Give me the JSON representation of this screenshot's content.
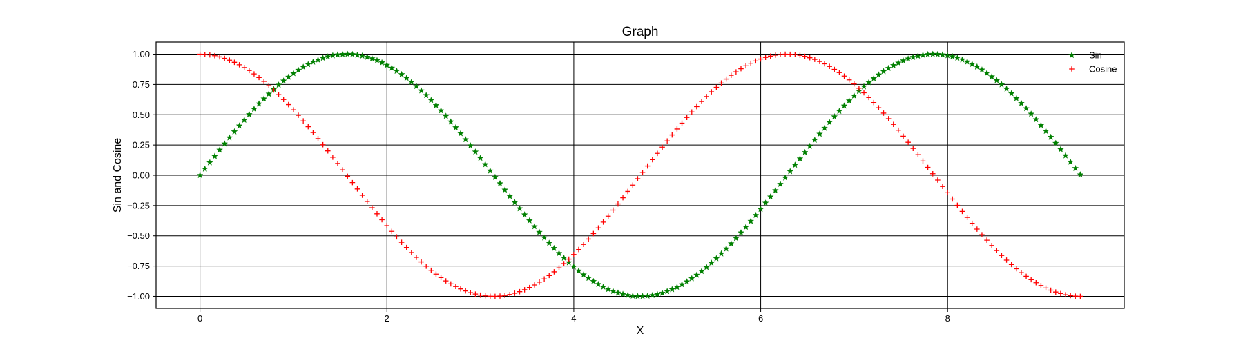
{
  "chart_data": {
    "type": "scatter",
    "title": "Graph",
    "xlabel": "X",
    "ylabel": "Sin and Cosine",
    "xlim": [
      -0.47,
      9.89
    ],
    "ylim": [
      -1.1,
      1.1
    ],
    "xticks": [
      0,
      2,
      4,
      6,
      8
    ],
    "xtick_labels": [
      "0",
      "2",
      "4",
      "6",
      "8"
    ],
    "yticks": [
      -1.0,
      -0.75,
      -0.5,
      -0.25,
      0.0,
      0.25,
      0.5,
      0.75,
      1.0
    ],
    "ytick_labels": [
      "−1.00",
      "−0.75",
      "−0.50",
      "−0.25",
      "0.00",
      "0.25",
      "0.50",
      "0.75",
      "1.00"
    ],
    "grid": true,
    "legend_position": "top-right",
    "x": {
      "start": 0,
      "stop": 9.42,
      "count": 180
    },
    "series": [
      {
        "name": "Sin",
        "function": "sin",
        "marker": "star",
        "color": "#008000"
      },
      {
        "name": "Cosine",
        "function": "cos",
        "marker": "plus",
        "color": "#ff0000"
      }
    ]
  }
}
